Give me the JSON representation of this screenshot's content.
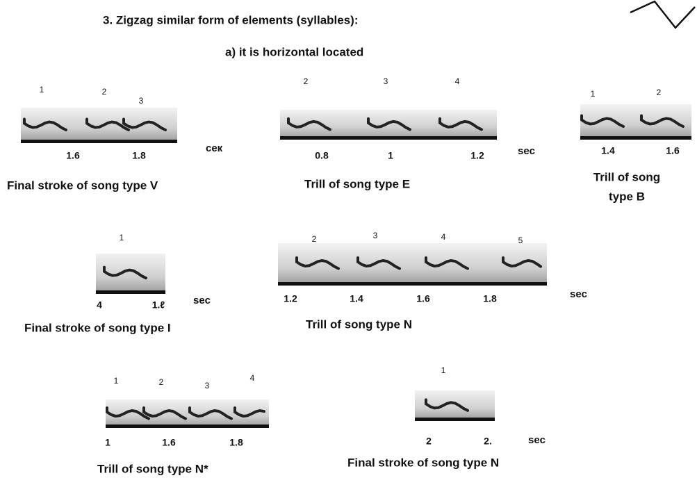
{
  "header": {
    "title": "3. Zigzag similar form of elements (syllables):",
    "subtitle": "a) it is horizontal located"
  },
  "panels": [
    {
      "syllables": [
        "1",
        "2",
        "3"
      ],
      "ticks": [
        "1.6",
        "1.8"
      ],
      "unit": "сек",
      "caption": [
        "Final stroke of song type V"
      ]
    },
    {
      "syllables": [
        "2",
        "3",
        "4"
      ],
      "ticks": [
        "0.8",
        "1",
        "1.2"
      ],
      "unit": "sec",
      "caption": [
        "Trill of song type E"
      ]
    },
    {
      "syllables": [
        "1",
        "2"
      ],
      "ticks": [
        "1.4",
        "1.6"
      ],
      "caption": [
        "Trill of song",
        "type B"
      ]
    },
    {
      "syllables": [
        "1"
      ],
      "ticks": [
        "4",
        "1.ℓ"
      ],
      "unit": "sec",
      "caption": [
        "Final stroke of song type I"
      ]
    },
    {
      "syllables": [
        "2",
        "3",
        "4",
        "5"
      ],
      "ticks": [
        "1.2",
        "1.4",
        "1.6",
        "1.8"
      ],
      "unit": "sec",
      "caption": [
        "Trill of song type N"
      ]
    },
    {
      "syllables": [
        "1",
        "2",
        "3",
        "4"
      ],
      "ticks": [
        "1",
        "1.6",
        "1.8"
      ],
      "caption": [
        "Trill of song type N*"
      ]
    },
    {
      "syllables": [
        "1"
      ],
      "ticks": [
        "2",
        "2."
      ],
      "unit": "sec",
      "caption": [
        "Final stroke of song type N"
      ]
    }
  ]
}
